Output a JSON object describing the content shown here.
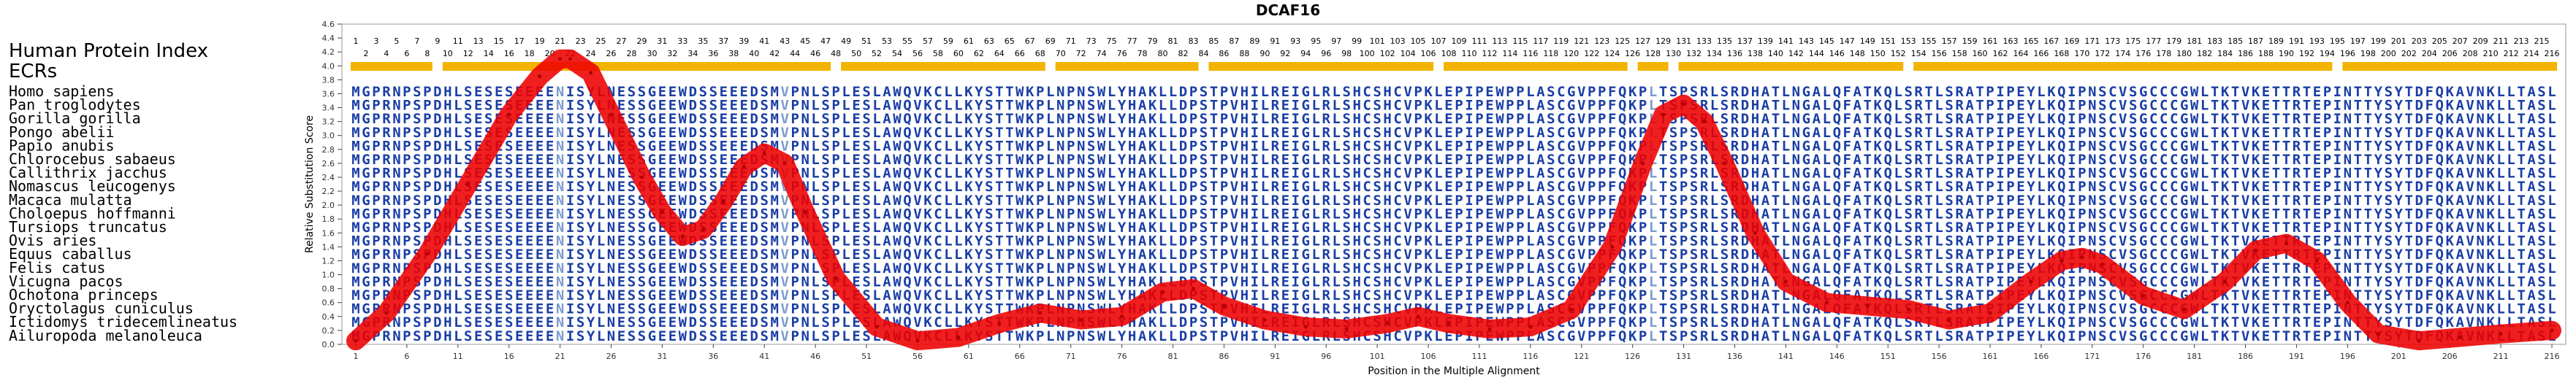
{
  "chart_data": {
    "type": "line",
    "title": "DCAF16",
    "xlabel": "Position in the Multiple Alignment",
    "ylabel": "Relative Substitution Score",
    "ylim": [
      0,
      4.6
    ],
    "yticks": [
      0,
      0.2,
      0.4,
      0.6,
      0.8,
      1.0,
      1.2,
      1.4,
      1.6,
      1.8,
      2.0,
      2.2,
      2.4,
      2.6,
      2.8,
      3.0,
      3.2,
      3.4,
      3.6,
      3.8,
      4.0,
      4.2,
      4.4,
      4.6
    ],
    "xlim": [
      1,
      216
    ],
    "xticks": [
      1,
      6,
      11,
      16,
      21,
      26,
      31,
      36,
      41,
      46,
      51,
      56,
      61,
      66,
      71,
      76,
      81,
      86,
      91,
      96,
      101,
      106,
      111,
      116,
      121,
      126,
      131,
      136,
      141,
      146,
      151,
      156,
      161,
      166,
      171,
      176,
      181,
      186,
      191,
      196,
      201,
      206,
      211,
      216
    ],
    "index_header": "Human Protein Index",
    "index_max": 216,
    "ecr_label": "ECRs",
    "ecr_regions": [
      [
        1,
        8
      ],
      [
        10,
        47
      ],
      [
        49,
        68
      ],
      [
        70,
        83
      ],
      [
        85,
        106
      ],
      [
        108,
        125
      ],
      [
        127,
        129
      ],
      [
        131,
        152
      ],
      [
        154,
        194
      ],
      [
        196,
        216
      ]
    ],
    "species": [
      "Homo sapiens",
      "Pan troglodytes",
      "Gorilla gorilla",
      "Pongo abelii",
      "Papio anubis",
      "Chlorocebus sabaeus",
      "Callithrix jacchus",
      "Nomascus leucogenys",
      "Macaca mulatta",
      "Choloepus hoffmanni",
      "Tursiops truncatus",
      "Ovis aries",
      "Equus caballus",
      "Felis catus",
      "Vicugna pacos",
      "Ochotona princeps",
      "Oryctolagus cuniculus",
      "Ictidomys tridecemlineatus",
      "Ailuropoda melanoleuca"
    ],
    "alignment": {
      "Homo sapiens": "MGPRNPSPDHLSESESEEEENISYLNESSGEEWDSSEEEDSMVPNLSPLESLAWQVKCLLKYSTTWKPLNPNSWLYHAKLLDPSTPVHILREIGLRLSHCSHCVPKLEPIPEWPPLASCGVPPFQKPLTSPSRLSRDHATLNGALQFATKQLSRTLSRATPIPEYLKQIPNSCVSGCCCGWLTKTVKETTRTEPINTTYSYTDFQKAVNKLLTASL",
      "Pan troglodytes": "MGPRNPSPDHLSESESEEEENISYLNESSGEEWDSSEEEDSMVPNLSPLESLAWQVKCLLKYSTTWKPLNPNSWLYHAKLLDPSTPVHILREIGLRLSHCSHCVPKLEPIPEWPPLASCGVPPFQKPLTSPSRLSRDHATLNGALQFATKQLSRTLSRATPIPEYLKQIPNSCVSGCCCGWLTKTVKETTRTEPINTTYSYTDFQKAVNKLLTASL",
      "Gorilla gorilla": "MGPRNPSPDHLSESESEEEENISYLNESSGEEWDSSEEEDSMVPNLSPLESLAWQVKCLLKYSTTWKPLNPNSWLYHAKLLDPSTPVHILREIGLRLSHCSHCVPKLEPIPEWPPLASCGVPPFQKPLTSPSRLSRDHATLNGALQFATKQLSRTLSRATPIPEYLKQIPNSCVSGCCCGWLTKTVKETTRTEPINTTYSYTDFQKAVNKLLTASL",
      "Pongo abelii": "MGPRNPSPDHLSESESEEEENISYLNESSGEEWDSSEEEDSMVPNLSPLESLAWQVKCLLKYSTTWKPLNPNSWLYHAKLLDPSTPVHILREIGLRLSHCSHCVPKLEPIPEWPPLASCGVPPFQKPLTSPSRLSRDHATLNGALQFATKQLSRTLSRATPIPEYLKQIPNSCVSGCCCGWLTKTVKETTRTEPINTTYSYTDFQKAVNKLLTASL",
      "Papio anubis": "MGPRNPSPDHLSESESEEEENISYLNESSGEEWDSSEEEDSMVPNLSPLESLAWQVKCLLKYSTTWKPLNPNSWLYHAKLLDPSTPVHILREIGLRLSHCSHCVPKLEPIPEWPPLASCGVPPFQKPLTSPSRLSRDHATLNGALQFATKQLSRTLSRATPIPEYLKQIPNSCVSGCCCGWLTKTVKETTRTEPINTTYSYTDFQKAVNKLLTASL",
      "Chlorocebus sabaeus": "MGPRNPSPDHLSESESEEEENISYLNESSGEEWDSSEEEDSMVPNLSPLESLAWQVKCLLKYSTTWKPLNPNSWLYHAKLLDPSTPVHILREIGLRLSHCSHCVPKLEPIPEWPPLASCGVPPFQKPLTSPSRLSRDHATLNGALQFATKQLSRTLSRATPIPEYLKQIPNSCVSGCCCGWLTKTVKETTRTEPINTTYSYTDFQKAVNKLLTASL",
      "Callithrix jacchus": "MGPRNPSPDHLSESESEEEENISYLNESSGEEWDSSEEEDSMVPNLSPLESLAWQVKCLLKYSTTWKPLNPNSWLYHAKLLDPSTPVHILREIGLRLSHCSHCVPKLEPIPEWPPLASCGVPPFQKPLTSPSRLSRDHATLNGALQFATKQLSRTLSRATPIPEYLKQIPNSCVSGCCCGWLTKTVKETTRTEPINTTYSYTDFQKAVNKLLTASL",
      "Nomascus leucogenys": "MGPRNPSPDHLSESESEEEENISYLNESSGEEWDSSEEEDSMVPNLSPLESLAWQVKCLLKYSTTWKPLNPNSWLYHAKLLDPSTPVHILREIGLRLSHCSHCVPKLEPIPEWPPLASCGVPPFQKPLTSPSRLSRDHATLNGALQFATKQLSRTLSRATPIPEYLKQIPNSCVSGCCCGWLTKTVKETTRTEPINTTYSYTDFQKAVNKLLTASL",
      "Macaca mulatta": "MGPRNPSPDHLSESESEEEENISYLNESSGEEWDSSEEEDSMVPNLSPLESLAWQVKCLLKYSTTWKPLNPNSWLYHAKLLDPSTPVHILREIGLRLSHCSHCVPKLEPIPEWPPLASCGVPPFQKPLTSPSRLSRDHATLNGALQFATKQLSRTLSRATPIPEYLKQIPNSCVSGCCCGWLTKTVKETTRTEPINTTYSYTDFQKAVNKLLTASL",
      "Choloepus hoffmanni": "MGPRNPSPDHLSESESEEEENISYLNESSGEEWDSSEEEDSMVPNLSPLESLAWQVKCLLKYSTTWKPLNPNSWLYHAKLLDPSTPVHILREIGLRLSHCSHCVPKLEPIPEWPPLASCGVPPFQKPLTSPSRLSRDHATLNGALQFATKQLSRTLSRATPIPEYLKQIPNSCVSGCCCGWLTKTVKETTRTEPINTTYSYTDFQKAVNKLLTASL",
      "Tursiops truncatus": "MGPRNPSPDHLSESESEEEENISYLNESSGEEWDSSEEEDSMVPNLSPLESLAWQVKCLLKYSTTWKPLNPNSWLYHAKLLDPSTPVHILREIGLRLSHCSHCVPKLEPIPEWPPLASCGVPPFQKPLTSPSRLSRDHATLNGALQFATKQLSRTLSRATPIPEYLKQIPNSCVSGCCCGWLTKTVKETTRTEPINTTYSYTDFQKAVNKLLTASL",
      "Ovis aries": "MGPRNPSPDHLSESESEEEENISYLNESSGEEWDSSEEEDSMVPNLSPLESLAWQVKCLLKYSTTWKPLNPNSWLYHAKLLDPSTPVHILREIGLRLSHCSHCVPKLEPIPEWPPLASCGVPPFQKPLTSPSRLSRDHATLNGALQFATKQLSRTLSRATPIPEYLKQIPNSCVSGCCCGWLTKTVKETTRTEPINTTYSYTDFQKAVNKLLTASL",
      "Equus caballus": "MGPRNPSPDHLSESESEEEENISYLNESSGEEWDSSEEEDSMVPNLSPLESLAWQVKCLLKYSTTWKPLNPNSWLYHAKLLDPSTPVHILREIGLRLSHCSHCVPKLEPIPEWPPLASCGVPPFQKPLTSPSRLSRDHATLNGALQFATKQLSRTLSRATPIPEYLKQIPNSCVSGCCCGWLTKTVKETTRTEPINTTYSYTDFQKAVNKLLTASL",
      "Felis catus": "MGPRNPSPDHLSESESEEEENISYLNESSGEEWDSSEEEDSMVPNLSPLESLAWQVKCLLKYSTTWKPLNPNSWLYHAKLLDPSTPVHILREIGLRLSHCSHCVPKLEPIPEWPPLASCGVPPFQKPLTSPSRLSRDHATLNGALQFATKQLSRTLSRATPIPEYLKQIPNSCVSGCCCGWLTKTVKETTRTEPINTTYSYTDFQKAVNKLLTASL",
      "Vicugna pacos": "MGPRNPSPDHLSESESEEEENISYLNESSGEEWDSSEEEDSMVPNLSPLESLAWQVKCLLKYSTTWKPLNPNSWLYHAKLLDPSTPVHILREIGLRLSHCSHCVPKLEPIPEWPPLASCGVPPFQKPLTSPSRLSRDHATLNGALQFATKQLSRTLSRATPIPEYLKQIPNSCVSGCCCGWLTKTVKETTRTEPINTTYSYTDFQKAVNKLLTASL",
      "Ochotona princeps": "MGPRNPSPDHLSESESEEEENISYLNESSGEEWDSSEEEDSMVPNLSPLESLAWQVKCLLKYSTTWKPLNPNSWLYHAKLLDPSTPVHILREIGLRLSHCSHCVPKLEPIPEWPPLASCGVPPFQKPLTSPSRLSRDHATLNGALQFATKQLSRTLSRATPIPEYLKQIPNSCVSGCCCGWLTKTVKETTRTEPINTTYSYTDFQKAVNKLLTASL",
      "Oryctolagus cuniculus": "MGPRNPSPDHLSESESEEEENISYLNESSGEEWDSSEEEDSMVPNLSPLESLAWQVKCLLKYSTTWKPLNPNSWLYHAKLLDPSTPVHILREIGLRLSHCSHCVPKLEPIPEWPPLASCGVPPFQKPLTSPSRLSRDHATLNGALQFATKQLSRTLSRATPIPEYLKQIPNSCVSGCCCGWLTKTVKETTRTEPINTTYSYTDFQKAVNKLLTASL",
      "Ictidomys tridecemlineatus": "MGPRNPSPDHLSESESEEEENISYLNESSGEEWDSSEEEDSMVPNLSPLESLAWQVKCLLKYSTTWKPLNPNSWLYHAKLLDPSTPVHILREIGLRLSHCSHCVPKLEPIPEWPPLASCGVPPFQKPLTSPSRLSRDHATLNGALQFATKQLSRTLSRATPIPEYLKQIPNSCVSGCCCGWLTKTVKETTRTEPINTTYSYTDFQKAVNKLLTASL",
      "Ailuropoda melanoleuca": "MGPRNPSPDHLSESESEEEENISYLNESSGEEWDSSEEEDSMVPNLSPLESLAWQVKCLLKYSTTWKPLNPNSWLYHAKLLDPSTPVHILREIGLRLSHCSHCVPKLEPIPEWPPLASCGVPPFQKPLTSPSRLSRDHATLNGALQFATKQLSRTLSRATPIPEYLKQIPNSCVSGCCCGWLTKTVKETTRTEPINTTYSYTDFQKAVNKLLTASL"
    },
    "series": [
      {
        "x": [
          1,
          4,
          8,
          12,
          16,
          19,
          21,
          22,
          24,
          26,
          29,
          31,
          33,
          35,
          37,
          39,
          41,
          43,
          45,
          48,
          52,
          56,
          60,
          64,
          68,
          72,
          76,
          80,
          83,
          86,
          90,
          94,
          98,
          102,
          105,
          108,
          112,
          116,
          120,
          124,
          127,
          129,
          131,
          133,
          135,
          138,
          141,
          145,
          149,
          153,
          157,
          161,
          165,
          168,
          170,
          172,
          176,
          180,
          184,
          187,
          190,
          193,
          196,
          199,
          203,
          207,
          211,
          216
        ],
        "y": [
          0.05,
          0.45,
          1.3,
          2.3,
          3.3,
          3.85,
          4.1,
          4.1,
          3.9,
          3.3,
          2.4,
          1.9,
          1.55,
          1.65,
          2.05,
          2.55,
          2.75,
          2.6,
          1.9,
          0.95,
          0.25,
          0.05,
          0.1,
          0.3,
          0.45,
          0.35,
          0.4,
          0.75,
          0.8,
          0.55,
          0.35,
          0.25,
          0.22,
          0.3,
          0.4,
          0.3,
          0.22,
          0.25,
          0.5,
          1.4,
          2.6,
          3.3,
          3.45,
          3.2,
          2.6,
          1.6,
          0.9,
          0.6,
          0.55,
          0.5,
          0.35,
          0.45,
          0.9,
          1.2,
          1.25,
          1.15,
          0.7,
          0.5,
          0.9,
          1.35,
          1.45,
          1.2,
          0.6,
          0.15,
          0.05,
          0.1,
          0.15,
          0.2
        ]
      }
    ],
    "colors": {
      "curve": "#ee0000",
      "ecr_bar": "#f2b400",
      "residue_default": "#1a3ea6",
      "residue_variant": "#7d9bcf",
      "frame": "#999999"
    },
    "legend": "none",
    "grid": false
  }
}
